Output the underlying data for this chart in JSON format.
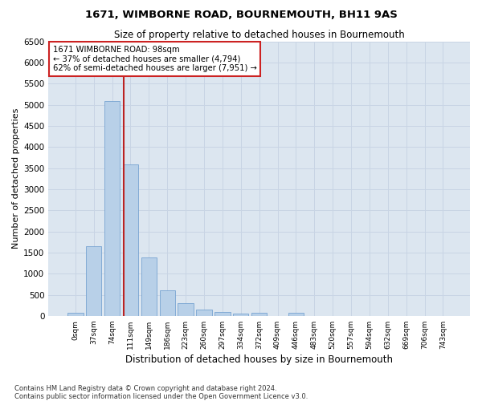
{
  "title": "1671, WIMBORNE ROAD, BOURNEMOUTH, BH11 9AS",
  "subtitle": "Size of property relative to detached houses in Bournemouth",
  "xlabel": "Distribution of detached houses by size in Bournemouth",
  "ylabel": "Number of detached properties",
  "bar_color": "#b8d0e8",
  "bar_edge_color": "#6699cc",
  "grid_color": "#c8d4e4",
  "background_color": "#dce6f0",
  "categories": [
    "0sqm",
    "37sqm",
    "74sqm",
    "111sqm",
    "149sqm",
    "186sqm",
    "223sqm",
    "260sqm",
    "297sqm",
    "334sqm",
    "372sqm",
    "409sqm",
    "446sqm",
    "483sqm",
    "520sqm",
    "557sqm",
    "594sqm",
    "632sqm",
    "669sqm",
    "706sqm",
    "743sqm"
  ],
  "values": [
    70,
    1640,
    5080,
    3580,
    1390,
    610,
    300,
    150,
    90,
    50,
    70,
    0,
    70,
    0,
    0,
    0,
    0,
    0,
    0,
    0,
    0
  ],
  "ylim": [
    0,
    6500
  ],
  "yticks": [
    0,
    500,
    1000,
    1500,
    2000,
    2500,
    3000,
    3500,
    4000,
    4500,
    5000,
    5500,
    6000,
    6500
  ],
  "property_label": "1671 WIMBORNE ROAD: 98sqm",
  "annotation_line1": "← 37% of detached houses are smaller (4,794)",
  "annotation_line2": "62% of semi-detached houses are larger (7,951) →",
  "vline_pos": 2.65,
  "vline_color": "#bb2222",
  "annotation_box_color": "#ffffff",
  "annotation_box_edge": "#cc2222",
  "footnote1": "Contains HM Land Registry data © Crown copyright and database right 2024.",
  "footnote2": "Contains public sector information licensed under the Open Government Licence v3.0."
}
